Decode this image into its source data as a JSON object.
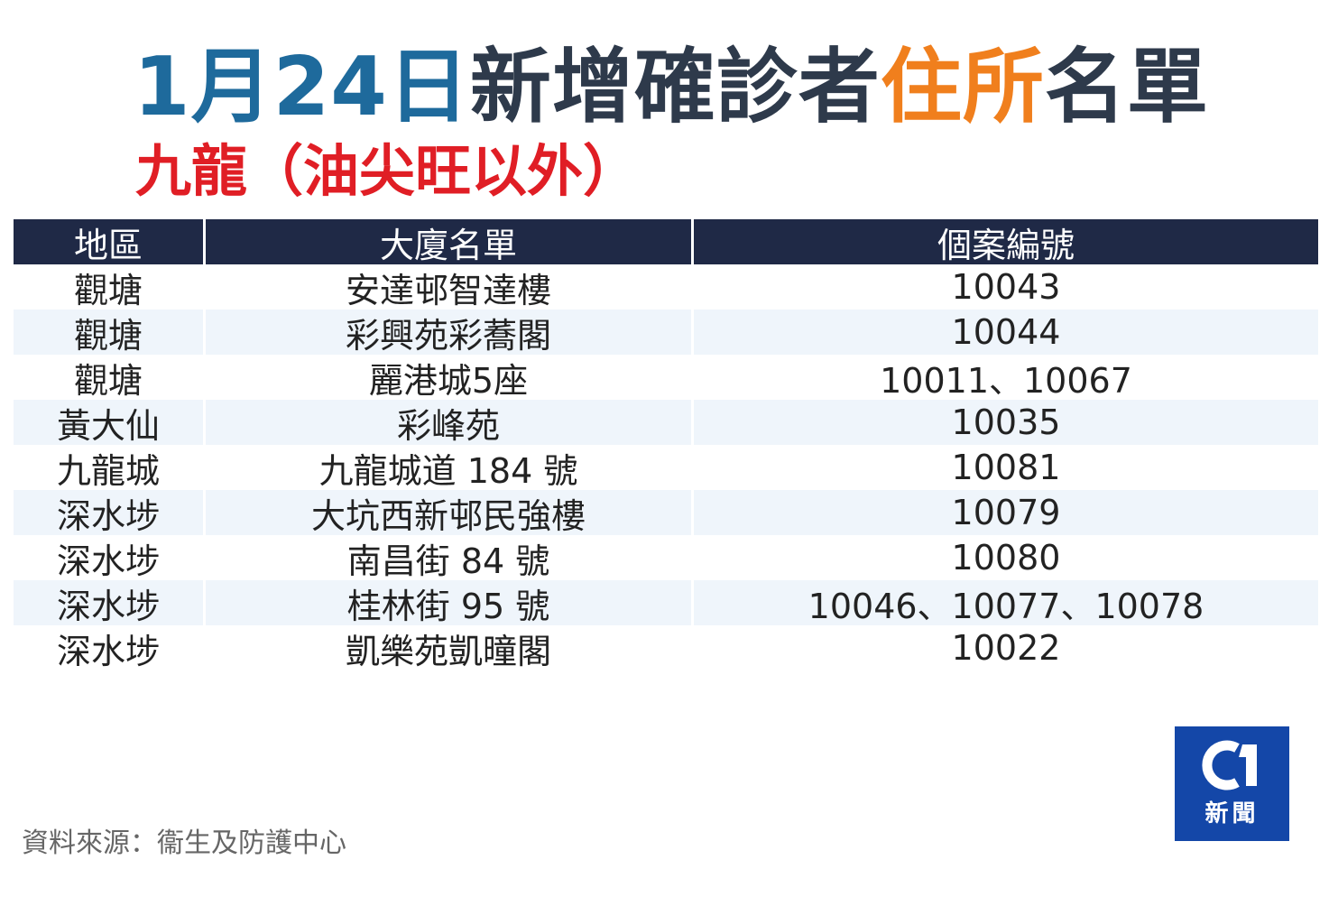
{
  "colors": {
    "title_blue": "#1e6a9c",
    "title_dark": "#2e3a4b",
    "title_orange": "#f07f1d",
    "subtitle_red": "#e01e25",
    "header_bg": "#1f2946",
    "row_alt_bg": "#eff5fb",
    "logo_bg": "#1447a8"
  },
  "title": {
    "part1": "1月24日",
    "part2": "新增確診者",
    "part3": "住所",
    "part4": "名單"
  },
  "subtitle": "九龍（油尖旺以外）",
  "table": {
    "headers": [
      "地區",
      "大廈名單",
      "個案編號"
    ],
    "rows": [
      [
        "觀塘",
        "安達邨智達樓",
        "10043"
      ],
      [
        "觀塘",
        "彩興苑彩蕎閣",
        "10044"
      ],
      [
        "觀塘",
        "麗港城5座",
        "10011、10067"
      ],
      [
        "黃大仙",
        "彩峰苑",
        "10035"
      ],
      [
        "九龍城",
        "九龍城道 184 號",
        "10081"
      ],
      [
        "深水埗",
        "大坑西新邨民強樓",
        "10079"
      ],
      [
        "深水埗",
        "南昌街 84 號",
        "10080"
      ],
      [
        "深水埗",
        "桂林街 95 號",
        "10046、10077、10078"
      ],
      [
        "深水埗",
        "凱樂苑凱曈閣",
        "10022"
      ]
    ]
  },
  "source": "資料來源：衞生及防護中心",
  "logo": {
    "icon": "01-logo-icon",
    "text": "新聞"
  }
}
